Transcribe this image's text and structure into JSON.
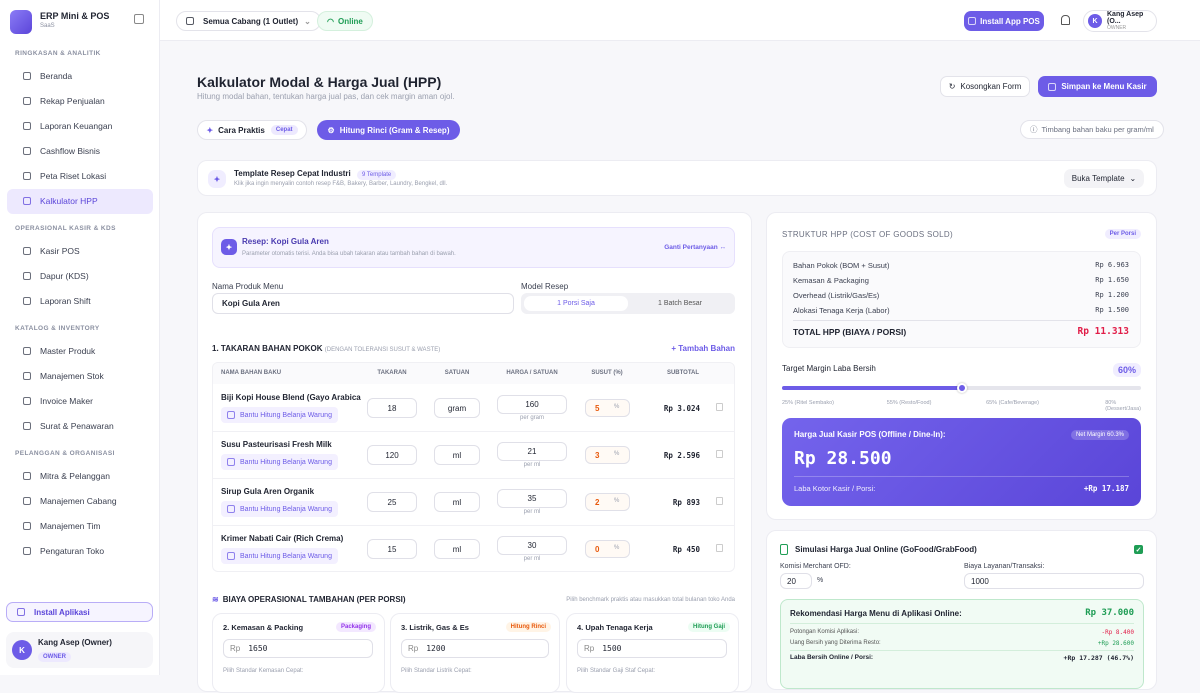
{
  "sidebar": {
    "brand": {
      "name": "ERP Mini & POS",
      "plan": "SaaS"
    },
    "sections": [
      {
        "title": "RINGKASAN & ANALITIK",
        "items": [
          {
            "label": "Beranda"
          },
          {
            "label": "Rekap Penjualan"
          },
          {
            "label": "Laporan Keuangan"
          },
          {
            "label": "Cashflow Bisnis"
          },
          {
            "label": "Peta Riset Lokasi"
          },
          {
            "label": "Kalkulator HPP",
            "active": true
          }
        ]
      },
      {
        "title": "OPERASIONAL KASIR & KDS",
        "items": [
          {
            "label": "Kasir POS"
          },
          {
            "label": "Dapur (KDS)"
          },
          {
            "label": "Laporan Shift"
          }
        ]
      },
      {
        "title": "KATALOG & INVENTORY",
        "items": [
          {
            "label": "Master Produk"
          },
          {
            "label": "Manajemen Stok"
          },
          {
            "label": "Invoice Maker"
          },
          {
            "label": "Surat & Penawaran"
          }
        ]
      },
      {
        "title": "PELANGGAN & ORGANISASI",
        "items": [
          {
            "label": "Mitra & Pelanggan"
          },
          {
            "label": "Manajemen Cabang"
          },
          {
            "label": "Manajemen Tim"
          },
          {
            "label": "Pengaturan Toko"
          }
        ]
      }
    ],
    "install": "Install Aplikasi",
    "user": {
      "initial": "K",
      "name": "Kang Asep (Owner)",
      "role": "OWNER"
    }
  },
  "topbar": {
    "branch": "Semua Cabang (1 Outlet)",
    "status": "Online",
    "install": "Install App POS",
    "user": {
      "initial": "K",
      "name": "Kang Asep (O...",
      "role": "OWNER"
    }
  },
  "header": {
    "title": "Kalkulator Modal & Harga Jual (HPP)",
    "subtitle": "Hitung modal bahan, tentukan harga jual pas, dan cek margin aman ojol.",
    "reset": "Kosongkan Form",
    "save": "Simpan ke Menu Kasir"
  },
  "tabs": {
    "items": [
      {
        "label": "Cara Praktis",
        "badge": "Cepat"
      },
      {
        "label": "Hitung Rinci (Gram & Resep)"
      }
    ],
    "hint": "Timbang bahan baku per gram/ml"
  },
  "template": {
    "title": "Template Resep Cepat Industri",
    "badge": "9 Template",
    "desc": "Klik jika ingin menyalin contoh resep F&B, Bakery, Barber, Laundry, Bengkel, dll.",
    "button": "Buka Template"
  },
  "recipe": {
    "title": "Resep: Kopi Gula Aren",
    "desc": "Parameter otomatis terisi. Anda bisa ubah takaran atau tambah bahan di bawah.",
    "change": "Ganti Pertanyaan ↔",
    "name_label": "Nama Produk Menu",
    "name": "Kopi Gula Aren",
    "model_label": "Model Resep",
    "models": [
      "1 Porsi Saja",
      "1 Batch Besar"
    ]
  },
  "ingredients": {
    "title": "1. TAKARAN BAHAN POKOK",
    "note": "(DENGAN TOLERANSI SUSUT & WASTE)",
    "add": "+ Tambah Bahan",
    "columns": [
      "NAMA BAHAN BAKU",
      "TAKARAN",
      "SATUAN",
      "HARGA / SATUAN",
      "SUSUT (%)",
      "SUBTOTAL"
    ],
    "rows": [
      {
        "name": "Biji Kopi House Blend (Gayo Arabica",
        "helper": "Bantu Hitung Belanja Warung",
        "qty": 18,
        "unit": "gram",
        "price": 160,
        "price_unit": "per gram",
        "waste": 5,
        "waste_unit": "%",
        "subtotal": "Rp 3.024"
      },
      {
        "name": "Susu Pasteurisasi Fresh Milk",
        "helper": "Bantu Hitung Belanja Warung",
        "qty": 120,
        "unit": "ml",
        "price": 21,
        "price_unit": "per ml",
        "waste": 3,
        "waste_unit": "%",
        "subtotal": "Rp 2.596"
      },
      {
        "name": "Sirup Gula Aren Organik",
        "helper": "Bantu Hitung Belanja Warung",
        "qty": 25,
        "unit": "ml",
        "price": 35,
        "price_unit": "per ml",
        "waste": 2,
        "waste_unit": "%",
        "subtotal": "Rp 893"
      },
      {
        "name": "Krimer Nabati Cair (Rich Crema)",
        "helper": "Bantu Hitung Belanja Warung",
        "qty": 15,
        "unit": "ml",
        "price": 30,
        "price_unit": "per ml",
        "waste": 0,
        "waste_unit": "%",
        "subtotal": "Rp 450"
      }
    ]
  },
  "overhead": {
    "title": "BIAYA OPERASIONAL TAMBAHAN (PER PORSI)",
    "hint": "Pilih benchmark praktis atau masukkan total bulanan toko Anda",
    "cards": [
      {
        "title": "2. Kemasan & Packing",
        "badge": "Packaging",
        "prefix": "Rp",
        "value": 1650,
        "label": "Pilih Standar Kemasan Cepat:"
      },
      {
        "title": "3. Listrik, Gas & Es",
        "badge": "Hitung Rinci",
        "prefix": "Rp",
        "value": 1200,
        "label": "Pilih Standar Listrik Cepat:"
      },
      {
        "title": "4. Upah Tenaga Kerja",
        "badge": "Hitung Gaji",
        "prefix": "Rp",
        "value": 1500,
        "label": "Pilih Standar Gaji Staf Cepat:"
      }
    ]
  },
  "hpp": {
    "title": "STRUKTUR HPP (COST OF GOODS SOLD)",
    "badge": "Per Porsi",
    "rows": [
      {
        "label": "Bahan Pokok (BOM + Susut)",
        "value": "Rp 6.963"
      },
      {
        "label": "Kemasan & Packaging",
        "value": "Rp 1.650"
      },
      {
        "label": "Overhead (Listrik/Gas/Es)",
        "value": "Rp 1.200"
      },
      {
        "label": "Alokasi Tenaga Kerja (Labor)",
        "value": "Rp 1.500"
      }
    ],
    "total": {
      "label": "TOTAL HPP (BIAYA / PORSI)",
      "value": "Rp 11.313"
    },
    "margin": {
      "label": "Target Margin Laba Bersih",
      "value": 60,
      "value_label": "60%",
      "benchmarks": [
        {
          "value": 25,
          "label": "25% (Ritel Sembako)"
        },
        {
          "value": 55,
          "label": "55% (Resto/Food)"
        },
        {
          "value": 65,
          "label": "65% (Cafe/Beverage)"
        },
        {
          "value": 80,
          "label": "80% (Dessert/Jasa)"
        }
      ]
    },
    "price": {
      "title": "Harga Jual Kasir POS (Offline / Dine-In):",
      "badge": "Net Margin 60.3%",
      "value": "Rp 28.500",
      "profit_label": "Laba Kotor Kasir / Porsi:",
      "profit": "+Rp 17.187"
    }
  },
  "online": {
    "title": "Simulasi Harga Jual Online (GoFood/GrabFood)",
    "commission_label": "Komisi Merchant OFD:",
    "commission": 20,
    "commission_unit": "%",
    "fee_label": "Biaya Layanan/Transaksi:",
    "fee": 1000,
    "rec_title": "Rekomendasi Harga Menu di Aplikasi Online:",
    "rec_value": "Rp 37.000",
    "rows": [
      {
        "label": "Potongan Komisi Aplikasi:",
        "value": "-Rp 8.400"
      },
      {
        "label": "Uang Bersih yang Diterima Resto:",
        "value": "+Rp 28.600"
      }
    ],
    "net": {
      "label": "Laba Bersih Online / Porsi:",
      "value": "+Rp 17.287 (46.7%)"
    }
  }
}
